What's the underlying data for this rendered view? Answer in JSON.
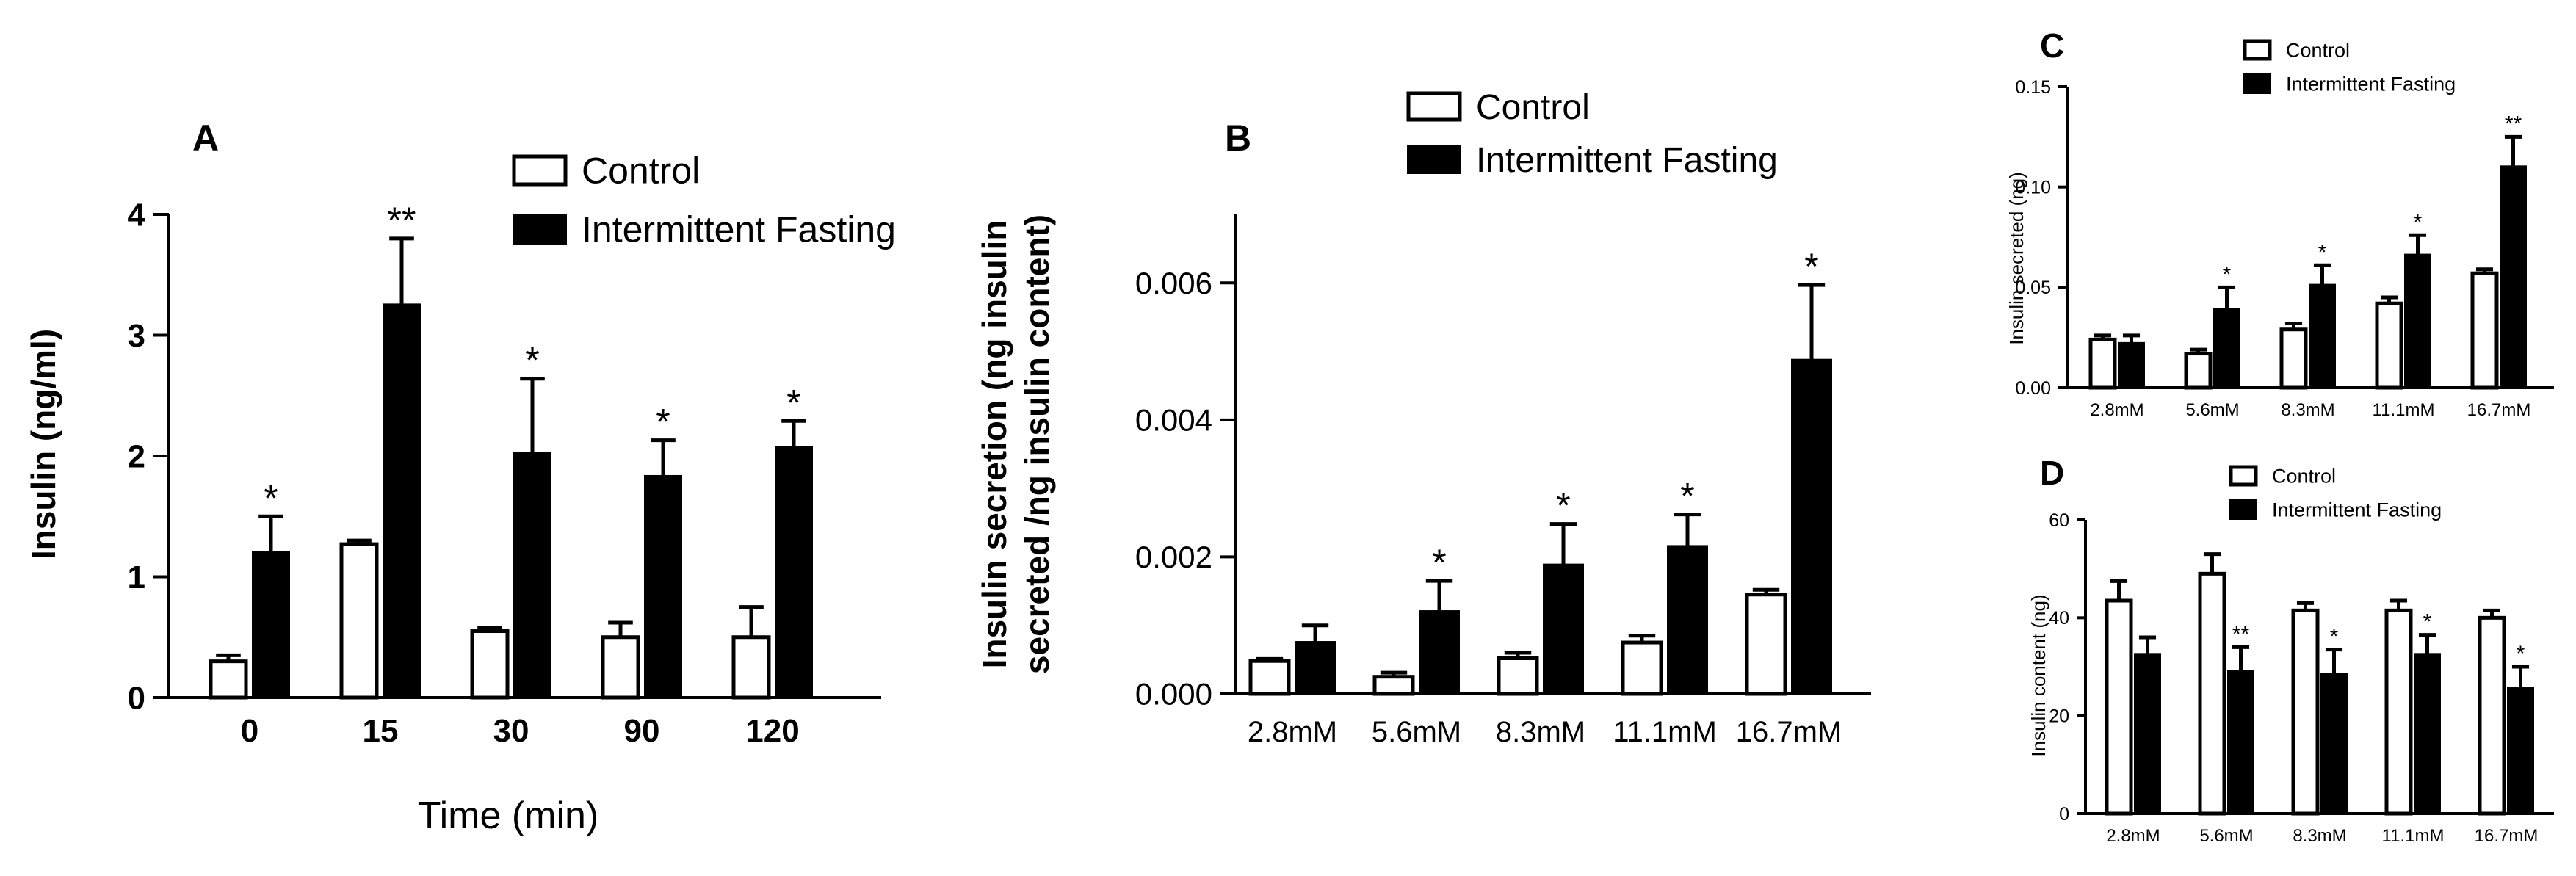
{
  "colors": {
    "control": "#ffffff",
    "intermittent_fasting": "#000000",
    "stroke": "#000000"
  },
  "chart_data": [
    {
      "id": "A",
      "type": "bar",
      "panel_label": "A",
      "xlabel": "Time (min)",
      "ylabel": "Insulin (ng/ml)",
      "ylim": [
        0,
        4
      ],
      "yticks": [
        "0",
        "1",
        "2",
        "3",
        "4"
      ],
      "categories": [
        "0",
        "15",
        "30",
        "90",
        "120"
      ],
      "legend": [
        "Control",
        "Intermittent Fasting"
      ],
      "series": [
        {
          "name": "Control",
          "values": [
            0.3,
            1.27,
            0.55,
            0.5,
            0.5
          ],
          "errors": [
            0.05,
            0.03,
            0.03,
            0.12,
            0.25
          ]
        },
        {
          "name": "Intermittent Fasting",
          "values": [
            1.2,
            3.25,
            2.02,
            1.83,
            2.07
          ],
          "errors": [
            0.3,
            0.55,
            0.62,
            0.3,
            0.22
          ]
        }
      ],
      "annotations": [
        "*",
        "**",
        "*",
        "*",
        "*"
      ]
    },
    {
      "id": "B",
      "type": "bar",
      "panel_label": "B",
      "xlabel": "",
      "ylabel": "Insulin secretion (ng insulin secreted /ng insulin content)",
      "ylabel_lines": [
        "Insulin secretion (ng insulin",
        "secreted /ng insulin content)"
      ],
      "ylim": [
        0,
        0.007
      ],
      "yticks": [
        "0.000",
        "0.002",
        "0.004",
        "0.006"
      ],
      "categories": [
        "2.8mM",
        "5.6mM",
        "8.3mM",
        "11.1mM",
        "16.7mM"
      ],
      "legend": [
        "Control",
        "Intermittent Fasting"
      ],
      "series": [
        {
          "name": "Control",
          "values": [
            0.00048,
            0.00025,
            0.00052,
            0.00075,
            0.00145
          ],
          "errors": [
            3e-05,
            6e-05,
            8e-05,
            0.0001,
            7e-05
          ]
        },
        {
          "name": "Intermittent Fasting",
          "values": [
            0.00075,
            0.0012,
            0.00188,
            0.00215,
            0.00487
          ],
          "errors": [
            0.00025,
            0.00045,
            0.0006,
            0.00047,
            0.0011
          ]
        }
      ],
      "annotations": [
        "",
        "*",
        "*",
        "*",
        "*"
      ]
    },
    {
      "id": "C",
      "type": "bar",
      "panel_label": "C",
      "xlabel": "",
      "ylabel": "Insulin secreted (ng)",
      "ylim": [
        0,
        0.15
      ],
      "yticks": [
        "0.00",
        "0.05",
        "0.10",
        "0.15"
      ],
      "categories": [
        "2.8mM",
        "5.6mM",
        "8.3mM",
        "11.1mM",
        "16.7mM"
      ],
      "legend": [
        "Control",
        "Intermittent Fasting"
      ],
      "series": [
        {
          "name": "Control",
          "values": [
            0.024,
            0.017,
            0.029,
            0.042,
            0.057
          ],
          "errors": [
            0.002,
            0.002,
            0.003,
            0.003,
            0.002
          ]
        },
        {
          "name": "Intermittent Fasting",
          "values": [
            0.022,
            0.039,
            0.051,
            0.066,
            0.11
          ],
          "errors": [
            0.004,
            0.011,
            0.01,
            0.01,
            0.015
          ]
        }
      ],
      "annotations": [
        "",
        "*",
        "*",
        "*",
        "**"
      ]
    },
    {
      "id": "D",
      "type": "bar",
      "panel_label": "D",
      "xlabel": "",
      "ylabel": "Insulin content (ng)",
      "ylim": [
        0,
        60
      ],
      "yticks": [
        "0",
        "20",
        "40",
        "60"
      ],
      "categories": [
        "2.8mM",
        "5.6mM",
        "8.3mM",
        "11.1mM",
        "16.7mM"
      ],
      "legend": [
        "Control",
        "Intermittent Fasting"
      ],
      "series": [
        {
          "name": "Control",
          "values": [
            43.5,
            49,
            41.5,
            41.5,
            40
          ],
          "errors": [
            4,
            4,
            1.5,
            2,
            1.5
          ]
        },
        {
          "name": "Intermittent Fasting",
          "values": [
            32.5,
            29,
            28.5,
            32.5,
            25.5
          ],
          "errors": [
            3.5,
            5,
            5,
            4,
            4.5
          ]
        }
      ],
      "annotations": [
        "",
        "**",
        "*",
        "*",
        "*"
      ]
    }
  ]
}
